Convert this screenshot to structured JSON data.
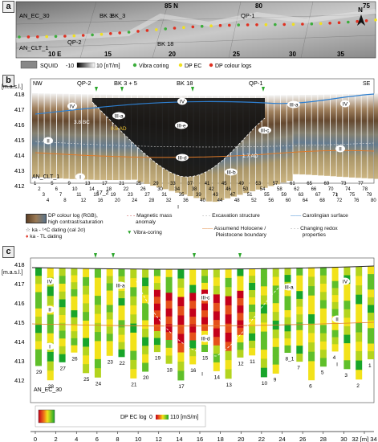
{
  "panels": {
    "a": "a",
    "b": "b",
    "c": "c"
  },
  "panel_a": {
    "north_arrow": "N",
    "coord_top": [
      "85 N",
      "80",
      "75"
    ],
    "coord_bottom": [
      "10 E",
      "15",
      "20",
      "25",
      "30",
      "35"
    ],
    "labels": [
      "AN_EC_30",
      "AN_CLT_1",
      "QP-2",
      "BK 3",
      "BK_3",
      "BK 18",
      "QP-1"
    ],
    "legend": {
      "squid": "SQUID",
      "squid_range": "-10",
      "squid_range2": "10 [nT/m]",
      "vibra": "Vibra coring",
      "dp_ec": "DP EC",
      "dp_colour": "DP colour logs"
    }
  },
  "panel_b": {
    "axis_unit": "[m.a.s.l.]",
    "yticks": [
      "418",
      "417",
      "416",
      "415",
      "414",
      "413",
      "412"
    ],
    "nw": "NW",
    "se": "SE",
    "top_labels": [
      "QP-2",
      "BK 3 + 5",
      "BK 18",
      "QP-1"
    ],
    "units": [
      "I",
      "II",
      "III-a",
      "III-b",
      "III-c",
      "III-d",
      "III-e",
      "IV"
    ],
    "annotations": {
      "age1": "3.8 BC",
      "age2": "0.8 AD",
      "age3": "1.7 AD",
      "bottom_label": "AN_CLT_1",
      "sub_label": "17_2"
    },
    "log_numbers": [
      "1",
      "2",
      "3",
      "4",
      "5",
      "6",
      "7",
      "8",
      "9",
      "10",
      "11",
      "12",
      "13",
      "14",
      "15",
      "16",
      "17",
      "18",
      "19",
      "20",
      "21",
      "22",
      "23",
      "24",
      "25",
      "26",
      "27",
      "28",
      "29",
      "30",
      "31",
      "32",
      "33",
      "34",
      "35",
      "36",
      "37",
      "38",
      "39",
      "40",
      "41",
      "42",
      "43",
      "44",
      "45",
      "46",
      "47",
      "48",
      "49",
      "50",
      "51",
      "52",
      "53",
      "54",
      "55",
      "56",
      "57",
      "58",
      "59",
      "60",
      "61",
      "62",
      "63",
      "64",
      "65",
      "66",
      "67",
      "68",
      "69",
      "70",
      "71",
      "72",
      "73",
      "74",
      "75",
      "76",
      "77",
      "78",
      "79",
      "80"
    ],
    "legend": {
      "dp_colour_log": "DP colour log (RGB),",
      "dp_colour_log2": "high contrast/saturation",
      "magnetic": "Magnetic mass",
      "magnetic2": "anomaly",
      "excavation": "Excavation structure",
      "carolingian": "Carolingian surface",
      "ka14c": "ka - ¹⁴C dating (cal 2σ)",
      "katl": "ka - TL dating",
      "vibra": "Vibra-coring",
      "holocene": "Assumend Holocene /",
      "holocene2": "Pleistocene boundary",
      "redox": "Changing redox",
      "redox2": "properties"
    }
  },
  "panel_c": {
    "axis_unit": "[m.a.s.l.]",
    "yticks": [
      "418",
      "417",
      "416",
      "415",
      "414",
      "413",
      "412"
    ],
    "units": [
      "IV",
      "III-a",
      "II",
      "I",
      "III-c",
      "III-d",
      "IV",
      "III-a",
      "II",
      "I",
      "I"
    ],
    "core_labels": [
      "29",
      "28",
      "27",
      "26",
      "25",
      "24",
      "23",
      "22",
      "21",
      "20",
      "19",
      "18",
      "17",
      "16",
      "15",
      "14",
      "13",
      "12",
      "11",
      "10",
      "9",
      "8_1",
      "7",
      "6",
      "5",
      "4",
      "3",
      "2",
      "1"
    ],
    "bottom_label": "AN_EC_30",
    "legend": {
      "log": "DP EC log",
      "range": "0",
      "range2": "110 [mS/m]"
    },
    "xaxis": [
      "0",
      "2",
      "4",
      "6",
      "8",
      "10",
      "12",
      "14",
      "16",
      "18",
      "20",
      "22",
      "24",
      "26",
      "28",
      "30",
      "32 [m] 34"
    ]
  }
}
